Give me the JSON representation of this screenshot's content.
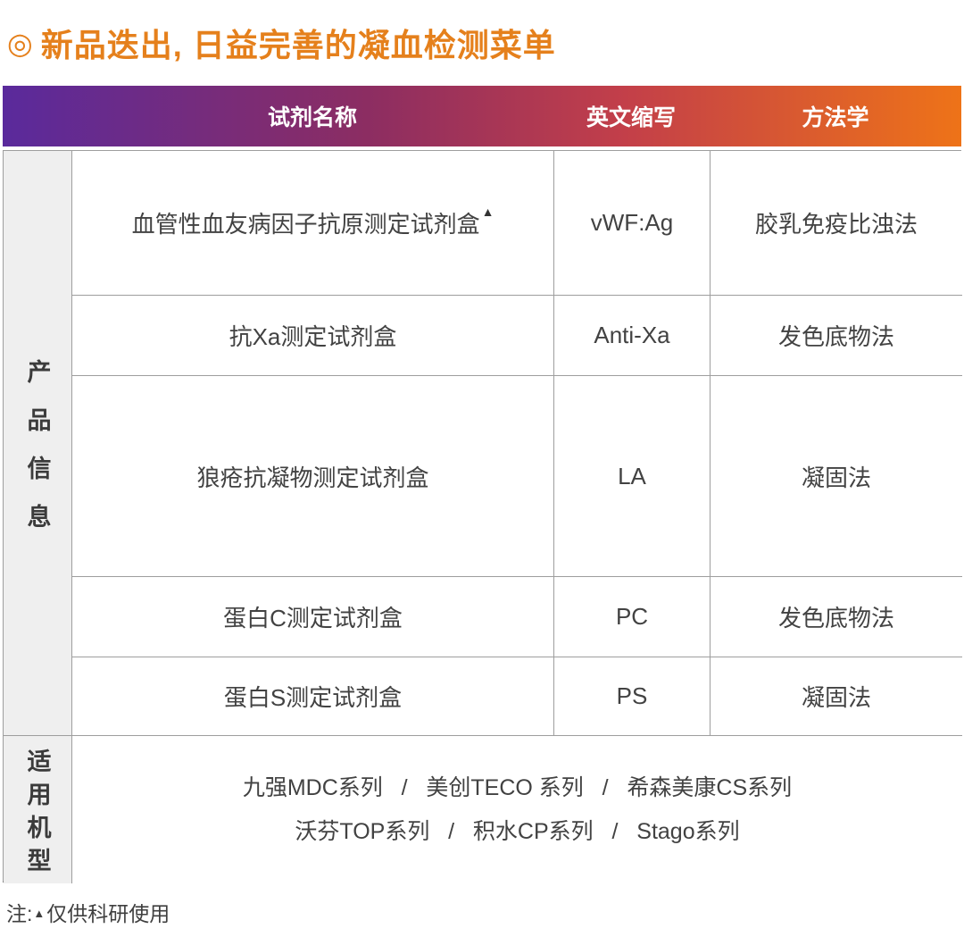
{
  "title": {
    "bullet": "◎",
    "text": "新品迭出, 日益完善的凝血检测菜单",
    "color": "#e5801c"
  },
  "table": {
    "header": {
      "col_reagent": "试剂名称",
      "col_abbr": "英文缩写",
      "col_method": "方法学",
      "gradient": [
        "#5a2a9c",
        "#8c2d62",
        "#c33f49",
        "#ee7318"
      ],
      "text_color": "#ffffff"
    },
    "group_label_product": "产品信息",
    "rows": [
      {
        "name": "血管性血友病因子抗原测定试剂盒",
        "mark": "▲",
        "abbr": "vWF:Ag",
        "method": "胶乳免疫比浊法"
      },
      {
        "name": "抗Xa测定试剂盒",
        "mark": "",
        "abbr": "Anti-Xa",
        "method": "发色底物法"
      },
      {
        "name": "狼疮抗凝物测定试剂盒",
        "mark": "",
        "abbr": "LA",
        "method": "凝固法"
      },
      {
        "name": "蛋白C测定试剂盒",
        "mark": "",
        "abbr": "PC",
        "method": "发色底物法"
      },
      {
        "name": "蛋白S测定试剂盒",
        "mark": "",
        "abbr": "PS",
        "method": "凝固法"
      }
    ],
    "models": {
      "label": "适用机型",
      "line1": "九强MDC系列   /   美创TECO 系列   /   希森美康CS系列",
      "line2": "沃芬TOP系列   /   积水CP系列   /   Stago系列"
    },
    "label_bg": "#efefef"
  },
  "note": {
    "prefix": "注:",
    "mark": "▲",
    "text": "仅供科研使用"
  }
}
